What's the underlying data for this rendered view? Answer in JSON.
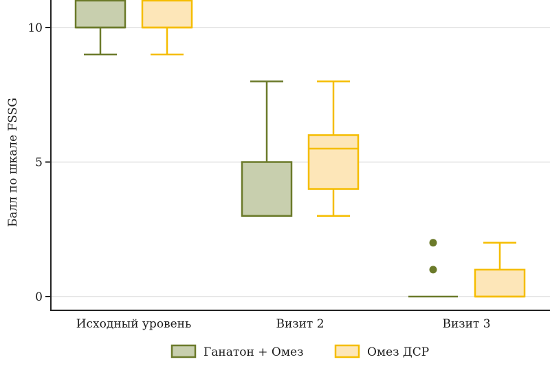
{
  "chart_data": {
    "type": "boxplot",
    "title": "",
    "xlabel": "",
    "ylabel": "Балл по шкале FSSG",
    "ylim": [
      -0.5,
      11
    ],
    "yticks": [
      0,
      5,
      10
    ],
    "ytick_labels": [
      "0",
      "5",
      "10"
    ],
    "grid": true,
    "legend_position": "bottom",
    "categories": [
      "Исходный уровень",
      "Визит 2",
      "Визит 3"
    ],
    "series": [
      {
        "name": "Ганатон + Омез",
        "stroke": "#6b7a2a",
        "fill": "#c8cfae",
        "boxes": [
          {
            "whisker_low": 9,
            "q1": 10,
            "median": 10,
            "q3": 11,
            "whisker_high": 11,
            "outliers": []
          },
          {
            "whisker_low": 3,
            "q1": 3,
            "median": 3,
            "q3": 5,
            "whisker_high": 8,
            "outliers": []
          },
          {
            "whisker_low": 0,
            "q1": 0,
            "median": 0,
            "q3": 0,
            "whisker_high": 0,
            "outliers": [
              1,
              2
            ]
          }
        ]
      },
      {
        "name": "Омез ДСР",
        "stroke": "#f5bd00",
        "fill": "#fde6b8",
        "boxes": [
          {
            "whisker_low": 9,
            "q1": 10,
            "median": 10,
            "q3": 11,
            "whisker_high": 11,
            "outliers": []
          },
          {
            "whisker_low": 3,
            "q1": 4,
            "median": 5.5,
            "q3": 6,
            "whisker_high": 8,
            "outliers": []
          },
          {
            "whisker_low": 0,
            "q1": 0,
            "median": 0,
            "q3": 1,
            "whisker_high": 2,
            "outliers": []
          }
        ]
      }
    ]
  }
}
